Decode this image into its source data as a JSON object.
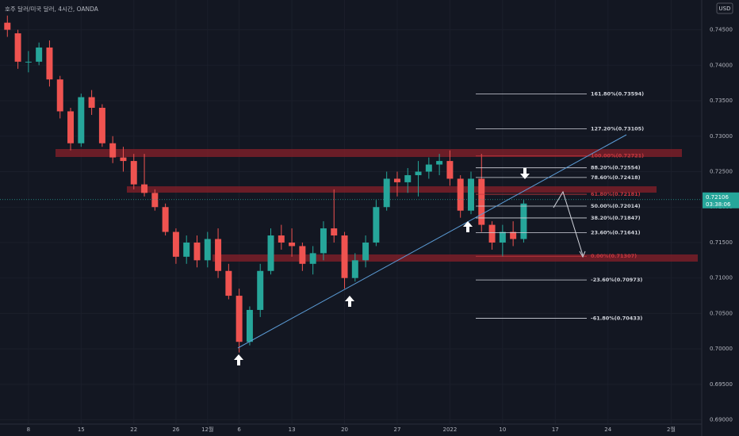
{
  "chart_data": {
    "type": "candlestick",
    "title": "호주 달러/미국 달러, 4시간, OANDA",
    "currency": "USD",
    "up_color": "#26a69a",
    "down_color": "#ef5350",
    "x": [
      -2,
      -1,
      0,
      1,
      2,
      3,
      4,
      5,
      6,
      7,
      8,
      9,
      10,
      11,
      12,
      13,
      14,
      15,
      16,
      17,
      18,
      19,
      20,
      21,
      22,
      23,
      24,
      25,
      26,
      27,
      28,
      29,
      30,
      31,
      32,
      33,
      34,
      35,
      36,
      37,
      38,
      39,
      40,
      41,
      42,
      43,
      44,
      45,
      46,
      47
    ],
    "open": [
      0.746,
      0.7445,
      0.7405,
      0.7405,
      0.7425,
      0.738,
      0.7335,
      0.729,
      0.7355,
      0.734,
      0.729,
      0.727,
      0.7265,
      0.7232,
      0.722,
      0.72,
      0.7165,
      0.713,
      0.715,
      0.7125,
      0.7155,
      0.711,
      0.7075,
      0.701,
      0.7055,
      0.711,
      0.716,
      0.715,
      0.7145,
      0.712,
      0.7135,
      0.717,
      0.716,
      0.71,
      0.7125,
      0.715,
      0.72,
      0.724,
      0.7235,
      0.7245,
      0.725,
      0.726,
      0.7265,
      0.724,
      0.7195,
      0.724,
      0.7175,
      0.715,
      0.7165,
      0.7155
    ],
    "high": [
      0.747,
      0.745,
      0.742,
      0.7432,
      0.7435,
      0.7385,
      0.734,
      0.736,
      0.7365,
      0.7345,
      0.73,
      0.7285,
      0.7275,
      0.7275,
      0.7225,
      0.7205,
      0.717,
      0.716,
      0.716,
      0.7165,
      0.717,
      0.712,
      0.7085,
      0.706,
      0.712,
      0.717,
      0.7175,
      0.717,
      0.715,
      0.7145,
      0.718,
      0.7225,
      0.7165,
      0.7135,
      0.716,
      0.721,
      0.725,
      0.725,
      0.7255,
      0.7265,
      0.727,
      0.7275,
      0.728,
      0.7245,
      0.725,
      0.7275,
      0.718,
      0.7175,
      0.718,
      0.721
    ],
    "low": [
      0.744,
      0.7395,
      0.739,
      0.74,
      0.737,
      0.7325,
      0.728,
      0.7285,
      0.733,
      0.7285,
      0.7262,
      0.725,
      0.7225,
      0.7215,
      0.7195,
      0.716,
      0.712,
      0.712,
      0.7115,
      0.7115,
      0.71,
      0.707,
      0.6995,
      0.7005,
      0.7045,
      0.7105,
      0.714,
      0.713,
      0.711,
      0.7105,
      0.7125,
      0.715,
      0.7085,
      0.7095,
      0.7115,
      0.7145,
      0.7195,
      0.7215,
      0.722,
      0.7215,
      0.724,
      0.7245,
      0.723,
      0.7185,
      0.719,
      0.7165,
      0.714,
      0.713,
      0.7145,
      0.715
    ],
    "close": [
      0.745,
      0.7405,
      0.7405,
      0.7425,
      0.738,
      0.7335,
      0.729,
      0.7355,
      0.734,
      0.729,
      0.727,
      0.7265,
      0.7232,
      0.722,
      0.72,
      0.7165,
      0.713,
      0.715,
      0.7125,
      0.7155,
      0.711,
      0.7075,
      0.701,
      0.7055,
      0.711,
      0.716,
      0.715,
      0.7145,
      0.712,
      0.7135,
      0.717,
      0.716,
      0.71,
      0.7125,
      0.715,
      0.72,
      0.724,
      0.7235,
      0.7245,
      0.725,
      0.726,
      0.7265,
      0.724,
      0.7195,
      0.724,
      0.7175,
      0.715,
      0.7165,
      0.7155,
      0.7205
    ],
    "xlim": [
      -2.7,
      63.9
    ],
    "xticks": [
      {
        "value": 0,
        "label": "8"
      },
      {
        "value": 5,
        "label": "15"
      },
      {
        "value": 10,
        "label": "22"
      },
      {
        "value": 14,
        "label": "26"
      },
      {
        "value": 17,
        "label": "12월"
      },
      {
        "value": 20,
        "label": "6"
      },
      {
        "value": 25,
        "label": "13"
      },
      {
        "value": 30,
        "label": "20"
      },
      {
        "value": 35,
        "label": "27"
      },
      {
        "value": 40,
        "label": "2022"
      },
      {
        "value": 45,
        "label": "10"
      },
      {
        "value": 50,
        "label": "17"
      },
      {
        "value": 55,
        "label": "24"
      },
      {
        "value": 61,
        "label": "2월"
      }
    ],
    "ylim": [
      0.6894,
      0.7492
    ],
    "yticks": [
      {
        "value": 0.745,
        "label": "0.74500"
      },
      {
        "value": 0.74,
        "label": "0.74000"
      },
      {
        "value": 0.735,
        "label": "0.73500"
      },
      {
        "value": 0.73,
        "label": "0.73000"
      },
      {
        "value": 0.725,
        "label": "0.72500"
      },
      {
        "value": 0.72,
        "label": "0.72000"
      },
      {
        "value": 0.715,
        "label": "0.71500"
      },
      {
        "value": 0.71,
        "label": "0.71000"
      },
      {
        "value": 0.705,
        "label": "0.70500"
      },
      {
        "value": 0.7,
        "label": "0.70000"
      },
      {
        "value": 0.695,
        "label": "0.69500"
      },
      {
        "value": 0.69,
        "label": "0.69000"
      }
    ],
    "grid": true,
    "last_price": {
      "value": 0.72106,
      "label": "0.72106"
    },
    "countdown": "03:38:06",
    "fib_levels": [
      {
        "label": "161.80%(0.73594)",
        "price": 0.73594,
        "color": "#d1d4dc"
      },
      {
        "label": "127.20%(0.73105)",
        "price": 0.73105,
        "color": "#d1d4dc"
      },
      {
        "label": "100.00%(0.72721)",
        "price": 0.72721,
        "color": "#c9383f"
      },
      {
        "label": "88.20%(0.72554)",
        "price": 0.72554,
        "color": "#d1d4dc"
      },
      {
        "label": "78.60%(0.72418)",
        "price": 0.72418,
        "color": "#d1d4dc"
      },
      {
        "label": "61.80%(0.72181)",
        "price": 0.72181,
        "color": "#c9383f"
      },
      {
        "label": "50.00%(0.72014)",
        "price": 0.72014,
        "color": "#d1d4dc"
      },
      {
        "label": "38.20%(0.71847)",
        "price": 0.71847,
        "color": "#d1d4dc"
      },
      {
        "label": "23.60%(0.71641)",
        "price": 0.71641,
        "color": "#d1d4dc"
      },
      {
        "label": "0.00%(0.71307)",
        "price": 0.71307,
        "color": "#c9383f"
      },
      {
        "label": "-23.60%(0.70973)",
        "price": 0.70973,
        "color": "#d1d4dc"
      },
      {
        "label": "-61.80%(0.70433)",
        "price": 0.70433,
        "color": "#d1d4dc"
      }
    ]
  }
}
